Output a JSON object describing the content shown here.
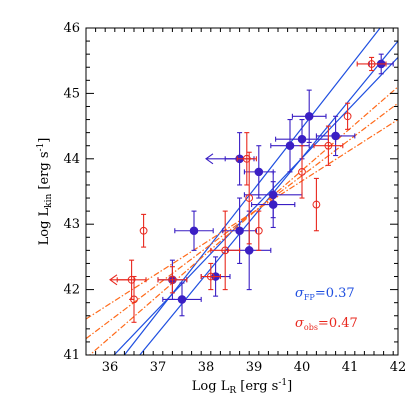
{
  "chart_data": {
    "type": "scatter",
    "xlabel": {
      "main": "Log L",
      "sub": "R",
      "unit": " [erg s",
      "sup": "-1",
      "close": "]"
    },
    "ylabel": {
      "main": "Log L",
      "sub": "kin",
      "unit": " [erg s",
      "sup": "-1",
      "close": "]"
    },
    "xlim": [
      35.5,
      42
    ],
    "ylim": [
      41,
      46
    ],
    "xticks": [
      36,
      37,
      38,
      39,
      40,
      41,
      42
    ],
    "yticks": [
      41,
      42,
      43,
      44,
      45,
      46
    ],
    "x_minor_step": 0.2,
    "y_minor_step": 0.2,
    "grid": false,
    "colors": {
      "fp": "#1f1fd6",
      "obs": "#e8281e",
      "fit_obs": "#ff6a1a",
      "filled": "#3a1fc4"
    },
    "annotations": [
      {
        "id": "fp",
        "symbol": "σ",
        "sub": "FP",
        "text": "=0.37",
        "color": "#1f4fe0"
      },
      {
        "id": "obs",
        "symbol": "σ",
        "sub": "obs",
        "text": "=0.47",
        "color": "#e8281e"
      }
    ],
    "series": [
      {
        "marker": "filled",
        "color": "#3a1fc4",
        "points": [
          {
            "x": 37.3,
            "y": 42.15,
            "xerr": 0.3,
            "yerr": 0.3
          },
          {
            "x": 37.5,
            "y": 41.85,
            "xerr": 0.4,
            "yerr": 0.25
          },
          {
            "x": 37.75,
            "y": 42.9,
            "xerr": 0.4,
            "yerr": 0.3
          },
          {
            "x": 38.2,
            "y": 42.2,
            "xerr": 0.3,
            "yerr": 0.3
          },
          {
            "x": 38.7,
            "y": 42.9,
            "xerr": 0.35,
            "yerr": 0.5
          },
          {
            "x": 38.9,
            "y": 42.6,
            "xerr": 0.45,
            "yerr": 0.6
          },
          {
            "x": 38.7,
            "y": 44.0,
            "xerr": 0.3,
            "yerr": 0.4,
            "left_limit": 38.0
          },
          {
            "x": 39.1,
            "y": 43.8,
            "xerr": 0.3,
            "yerr": 0.4
          },
          {
            "x": 39.4,
            "y": 43.45,
            "xerr": 0.6,
            "yerr": 0.35
          },
          {
            "x": 39.4,
            "y": 43.3,
            "xerr": 0.45,
            "yerr": 0.35
          },
          {
            "x": 39.75,
            "y": 44.2,
            "xerr": 0.4,
            "yerr": 0.4
          },
          {
            "x": 40.0,
            "y": 44.3,
            "xerr": 0.55,
            "yerr": 0.3
          },
          {
            "x": 40.15,
            "y": 44.65,
            "xerr": 0.35,
            "yerr": 0.4
          },
          {
            "x": 40.7,
            "y": 44.35,
            "xerr": 0.4,
            "yerr": 0.3
          },
          {
            "x": 41.65,
            "y": 45.45,
            "xerr": 0.25,
            "yerr": 0.15
          }
        ]
      },
      {
        "marker": "open",
        "color": "#e8281e",
        "points": [
          {
            "x": 36.45,
            "y": 42.15,
            "xerr": 0.3,
            "yerr": 0.3,
            "left_limit": 36.0
          },
          {
            "x": 36.5,
            "y": 41.85,
            "xerr": 0.0,
            "yerr": 0.35
          },
          {
            "x": 36.7,
            "y": 42.9,
            "xerr": 0.0,
            "yerr": 0.25
          },
          {
            "x": 37.3,
            "y": 42.15,
            "xerr": 0.3,
            "yerr": 0.2
          },
          {
            "x": 38.1,
            "y": 42.2,
            "xerr": 0.2,
            "yerr": 0.2
          },
          {
            "x": 38.4,
            "y": 42.6,
            "xerr": 0.3,
            "yerr": 0.6
          },
          {
            "x": 38.85,
            "y": 44.0,
            "xerr": 0.2,
            "yerr": 0.4
          },
          {
            "x": 38.9,
            "y": 43.4,
            "xerr": 0.0,
            "yerr": 0.7
          },
          {
            "x": 39.1,
            "y": 42.9,
            "xerr": 0.0,
            "yerr": 0.3
          },
          {
            "x": 40.0,
            "y": 43.8,
            "xerr": 0.0,
            "yerr": 0.4
          },
          {
            "x": 40.3,
            "y": 43.3,
            "xerr": 0.0,
            "yerr": 0.4
          },
          {
            "x": 40.55,
            "y": 44.2,
            "xerr": 0.3,
            "yerr": 0.3
          },
          {
            "x": 40.95,
            "y": 44.65,
            "xerr": 0.0,
            "yerr": 0.2
          },
          {
            "x": 41.45,
            "y": 45.45,
            "xerr": 0.3,
            "yerr": 0.1
          }
        ]
      }
    ],
    "fits": [
      {
        "style": "solid",
        "color": "#1f4fe0",
        "x": [
          35.5,
          42
        ],
        "y": [
          40.25,
          46.35
        ]
      },
      {
        "style": "solid",
        "color": "#1f4fe0",
        "x": [
          35.5,
          42
        ],
        "y": [
          40.0,
          45.8
        ]
      },
      {
        "style": "solid",
        "color": "#1f4fe0",
        "x": [
          35.5,
          42
        ],
        "y": [
          40.55,
          45.55
        ]
      },
      {
        "style": "dashdot",
        "color": "#ff6a1a",
        "x": [
          35.5,
          42
        ],
        "y": [
          41.55,
          44.6
        ]
      },
      {
        "style": "dashdot",
        "color": "#ff6a1a",
        "x": [
          35.5,
          42
        ],
        "y": [
          41.25,
          44.85
        ]
      },
      {
        "style": "dashdot",
        "color": "#ff6a1a",
        "x": [
          35.5,
          42
        ],
        "y": [
          40.95,
          45.1
        ]
      }
    ]
  }
}
